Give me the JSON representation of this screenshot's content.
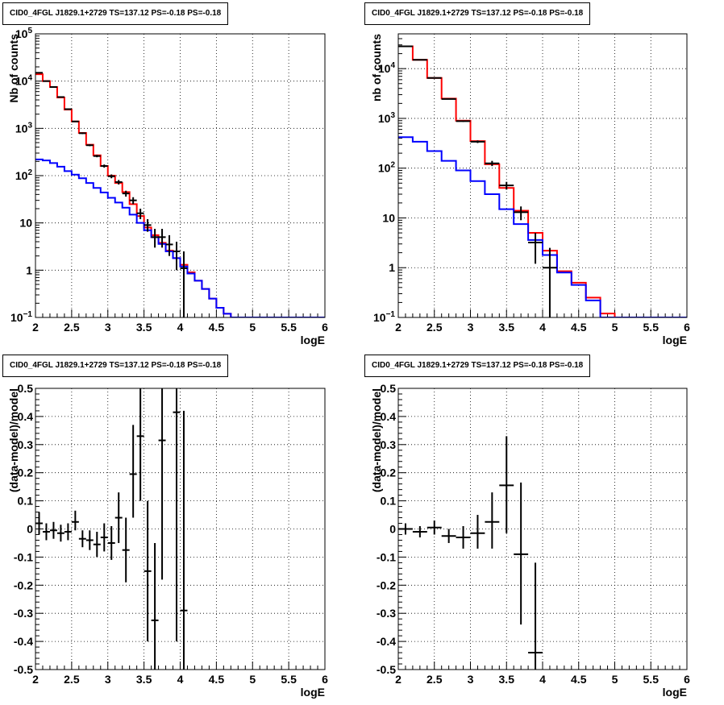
{
  "chart_data": [
    {
      "type": "line",
      "title": "CID0_4FGL J1829.1+2729 TS=137.12 PS=-0.18 PS=-0.18",
      "xlabel": "logE",
      "ylabel": "Nb of counts",
      "scale_y": "log",
      "xlim": [
        2,
        6
      ],
      "ylim": [
        0.1,
        100000
      ],
      "grid": true,
      "xticks": [
        "2",
        "2.5",
        "3",
        "3.5",
        "4",
        "4.5",
        "5",
        "5.5",
        "6"
      ],
      "yticks": [
        {
          "v": 0.1,
          "label": "10",
          "sup": "−1"
        },
        {
          "v": 1,
          "label": "1",
          "sup": ""
        },
        {
          "v": 10,
          "label": "10",
          "sup": ""
        },
        {
          "v": 100,
          "label": "10",
          "sup": "2"
        },
        {
          "v": 1000,
          "label": "10",
          "sup": "3"
        },
        {
          "v": 10000,
          "label": "10",
          "sup": "4"
        },
        {
          "v": 100000,
          "label": "10",
          "sup": "5"
        }
      ],
      "bin_edges": [
        2.0,
        2.1,
        2.2,
        2.3,
        2.4,
        2.5,
        2.6,
        2.7,
        2.8,
        2.9,
        3.0,
        3.1,
        3.2,
        3.3,
        3.4,
        3.5,
        3.6,
        3.7,
        3.8,
        3.9,
        4.0,
        4.1,
        4.2,
        4.3,
        4.4,
        4.5,
        4.6,
        4.7,
        4.8,
        4.9,
        5.0,
        5.1,
        5.2,
        5.3,
        5.4,
        5.5,
        5.6,
        5.7,
        5.8,
        5.9,
        6.0
      ],
      "series": [
        {
          "color": "#ff0000",
          "style": "step",
          "values": [
            14000,
            10000,
            7500,
            4500,
            2500,
            1400,
            800,
            450,
            270,
            160,
            100,
            70,
            45,
            25,
            14,
            8,
            5.5,
            3.8,
            2.6,
            1.8,
            1.3,
            0.9,
            0.6,
            0.4,
            0.25,
            0.16,
            0.12,
            0.1,
            0.1,
            0.1,
            0.1,
            0.1,
            0.1,
            0.1,
            0.1,
            0.1,
            0.1,
            0.1,
            0.1,
            0.1
          ]
        },
        {
          "color": "#0000ff",
          "style": "step",
          "values": [
            220,
            210,
            185,
            155,
            125,
            105,
            88,
            70,
            55,
            44,
            34,
            27,
            21,
            15,
            10,
            7,
            5,
            3.6,
            2.5,
            1.8,
            1.2,
            0.85,
            0.6,
            0.4,
            0.25,
            0.16,
            0.12,
            0.1,
            0.1,
            0.1,
            0.1,
            0.1,
            0.1,
            0.1,
            0.1,
            0.1,
            0.1,
            0.1,
            0.1,
            0.1
          ]
        },
        {
          "color": "#000000",
          "style": "errorbar",
          "points": [
            {
              "x": 2.05,
              "y": 15000,
              "lo": 14800,
              "hi": 15200
            },
            {
              "x": 2.15,
              "y": 10000,
              "lo": 9900,
              "hi": 10100
            },
            {
              "x": 2.25,
              "y": 7500,
              "lo": 7400,
              "hi": 7600
            },
            {
              "x": 2.35,
              "y": 4600,
              "lo": 4500,
              "hi": 4700
            },
            {
              "x": 2.45,
              "y": 2550,
              "lo": 2500,
              "hi": 2600
            },
            {
              "x": 2.55,
              "y": 1400,
              "lo": 1360,
              "hi": 1440
            },
            {
              "x": 2.65,
              "y": 790,
              "lo": 760,
              "hi": 820
            },
            {
              "x": 2.75,
              "y": 440,
              "lo": 420,
              "hi": 460
            },
            {
              "x": 2.85,
              "y": 260,
              "lo": 245,
              "hi": 275
            },
            {
              "x": 2.95,
              "y": 160,
              "lo": 148,
              "hi": 172
            },
            {
              "x": 3.05,
              "y": 97,
              "lo": 88,
              "hi": 106
            },
            {
              "x": 3.15,
              "y": 73,
              "lo": 65,
              "hi": 81
            },
            {
              "x": 3.25,
              "y": 42,
              "lo": 36,
              "hi": 48
            },
            {
              "x": 3.35,
              "y": 30,
              "lo": 25,
              "hi": 35
            },
            {
              "x": 3.45,
              "y": 16,
              "lo": 12,
              "hi": 20
            },
            {
              "x": 3.55,
              "y": 9,
              "lo": 6.5,
              "hi": 12
            },
            {
              "x": 3.65,
              "y": 5,
              "lo": 3,
              "hi": 7.5
            },
            {
              "x": 3.75,
              "y": 5,
              "lo": 3,
              "hi": 7.5
            },
            {
              "x": 3.85,
              "y": 3.5,
              "lo": 2,
              "hi": 5.5
            },
            {
              "x": 3.95,
              "y": 2.5,
              "lo": 1,
              "hi": 4
            },
            {
              "x": 4.05,
              "y": 1.1,
              "lo": 0.1,
              "hi": 2.5
            }
          ]
        }
      ]
    },
    {
      "type": "line",
      "title": "CID0_4FGL J1829.1+2729 TS=137.12 PS=-0.18 PS=-0.18",
      "xlabel": "logE",
      "ylabel": "nb of counts",
      "scale_y": "log",
      "xlim": [
        2,
        6
      ],
      "ylim": [
        0.1,
        50000
      ],
      "grid": true,
      "xticks": [
        "2",
        "2.5",
        "3",
        "3.5",
        "4",
        "4.5",
        "5",
        "5.5",
        "6"
      ],
      "yticks": [
        {
          "v": 0.1,
          "label": "10",
          "sup": "−1"
        },
        {
          "v": 1,
          "label": "1",
          "sup": ""
        },
        {
          "v": 10,
          "label": "10",
          "sup": ""
        },
        {
          "v": 100,
          "label": "10",
          "sup": "2"
        },
        {
          "v": 1000,
          "label": "10",
          "sup": "3"
        },
        {
          "v": 10000,
          "label": "10",
          "sup": "4"
        }
      ],
      "bin_edges": [
        2.0,
        2.2,
        2.4,
        2.6,
        2.8,
        3.0,
        3.2,
        3.4,
        3.6,
        3.8,
        4.0,
        4.2,
        4.4,
        4.6,
        4.8,
        5.0,
        5.2,
        5.4,
        5.6,
        5.8,
        6.0
      ],
      "series": [
        {
          "color": "#ff0000",
          "style": "step",
          "values": [
            28000,
            15000,
            6500,
            2500,
            900,
            350,
            120,
            40,
            14,
            5,
            2.2,
            0.85,
            0.5,
            0.25,
            0.12,
            0.1,
            0.1,
            0.1,
            0.1,
            0.1
          ]
        },
        {
          "color": "#0000ff",
          "style": "step",
          "values": [
            420,
            340,
            220,
            140,
            90,
            55,
            30,
            15,
            7.5,
            3.6,
            1.8,
            0.8,
            0.45,
            0.22,
            0.1,
            0.1,
            0.1,
            0.1,
            0.1,
            0.1
          ]
        },
        {
          "color": "#000000",
          "style": "errorbar",
          "points": [
            {
              "x": 2.1,
              "y": 28000,
              "lo": 27800,
              "hi": 28200
            },
            {
              "x": 2.3,
              "y": 15000,
              "lo": 14900,
              "hi": 15100
            },
            {
              "x": 2.5,
              "y": 6500,
              "lo": 6400,
              "hi": 6600
            },
            {
              "x": 2.7,
              "y": 2450,
              "lo": 2400,
              "hi": 2500
            },
            {
              "x": 2.9,
              "y": 880,
              "lo": 850,
              "hi": 910
            },
            {
              "x": 3.1,
              "y": 340,
              "lo": 320,
              "hi": 360
            },
            {
              "x": 3.3,
              "y": 125,
              "lo": 110,
              "hi": 140
            },
            {
              "x": 3.5,
              "y": 45,
              "lo": 37,
              "hi": 53
            },
            {
              "x": 3.7,
              "y": 13,
              "lo": 9,
              "hi": 17
            },
            {
              "x": 3.9,
              "y": 3.2,
              "lo": 1.2,
              "hi": 5
            },
            {
              "x": 4.1,
              "y": 1,
              "lo": 0.1,
              "hi": 2.5
            }
          ]
        }
      ]
    },
    {
      "type": "scatter",
      "title": "CID0_4FGL J1829.1+2729 TS=137.12 PS=-0.18 PS=-0.18",
      "xlabel": "logE",
      "ylabel": "(data-model)/model",
      "xlim": [
        2,
        6
      ],
      "ylim": [
        -0.5,
        0.5
      ],
      "grid": true,
      "xticks": [
        "2",
        "2.5",
        "3",
        "3.5",
        "4",
        "4.5",
        "5",
        "5.5",
        "6"
      ],
      "yticks": [
        "-0.5",
        "-0.4",
        "-0.3",
        "-0.2",
        "-0.1",
        "0",
        "0.1",
        "0.2",
        "0.3",
        "0.4",
        "0.5"
      ],
      "bin_halfwidth": 0.05,
      "points": [
        {
          "x": 2.05,
          "y": 0.02,
          "lo": -0.02,
          "hi": 0.06
        },
        {
          "x": 2.15,
          "y": -0.01,
          "lo": -0.04,
          "hi": 0.02
        },
        {
          "x": 2.25,
          "y": -0.005,
          "lo": -0.035,
          "hi": 0.025
        },
        {
          "x": 2.35,
          "y": -0.015,
          "lo": -0.045,
          "hi": 0.015
        },
        {
          "x": 2.45,
          "y": -0.01,
          "lo": -0.04,
          "hi": 0.02
        },
        {
          "x": 2.55,
          "y": 0.025,
          "lo": -0.005,
          "hi": 0.065
        },
        {
          "x": 2.65,
          "y": -0.035,
          "lo": -0.065,
          "hi": -0.005
        },
        {
          "x": 2.75,
          "y": -0.04,
          "lo": -0.075,
          "hi": -0.005
        },
        {
          "x": 2.85,
          "y": -0.055,
          "lo": -0.1,
          "hi": -0.01
        },
        {
          "x": 2.95,
          "y": -0.03,
          "lo": -0.08,
          "hi": 0.02
        },
        {
          "x": 3.05,
          "y": -0.05,
          "lo": -0.11,
          "hi": 0.01
        },
        {
          "x": 3.15,
          "y": 0.04,
          "lo": -0.05,
          "hi": 0.13
        },
        {
          "x": 3.25,
          "y": -0.075,
          "lo": -0.19,
          "hi": 0.04
        },
        {
          "x": 3.35,
          "y": 0.195,
          "lo": 0.04,
          "hi": 0.37
        },
        {
          "x": 3.45,
          "y": 0.33,
          "lo": 0.1,
          "hi": 0.5
        },
        {
          "x": 3.55,
          "y": -0.15,
          "lo": -0.4,
          "hi": 0.1
        },
        {
          "x": 3.65,
          "y": -0.325,
          "lo": -0.5,
          "hi": -0.05
        },
        {
          "x": 3.75,
          "y": 0.315,
          "lo": -0.18,
          "hi": 0.5
        },
        {
          "x": 3.95,
          "y": 0.415,
          "lo": -0.4,
          "hi": 0.5
        },
        {
          "x": 4.05,
          "y": -0.29,
          "lo": -0.5,
          "hi": 0.42
        }
      ]
    },
    {
      "type": "scatter",
      "title": "CID0_4FGL J1829.1+2729 TS=137.12 PS=-0.18 PS=-0.18",
      "xlabel": "logE",
      "ylabel": "(data-model)/model",
      "xlim": [
        2,
        6
      ],
      "ylim": [
        -0.5,
        0.5
      ],
      "grid": true,
      "xticks": [
        "2",
        "2.5",
        "3",
        "3.5",
        "4",
        "4.5",
        "5",
        "5.5",
        "6"
      ],
      "yticks": [
        "-0.5",
        "-0.4",
        "-0.3",
        "-0.2",
        "-0.1",
        "0",
        "0.1",
        "0.2",
        "0.3",
        "0.4",
        "0.5"
      ],
      "bin_halfwidth": 0.1,
      "points": [
        {
          "x": 2.1,
          "y": 0.0,
          "lo": -0.02,
          "hi": 0.02
        },
        {
          "x": 2.3,
          "y": -0.01,
          "lo": -0.03,
          "hi": 0.01
        },
        {
          "x": 2.5,
          "y": 0.005,
          "lo": -0.02,
          "hi": 0.03
        },
        {
          "x": 2.7,
          "y": -0.025,
          "lo": -0.05,
          "hi": 0.0
        },
        {
          "x": 2.9,
          "y": -0.03,
          "lo": -0.07,
          "hi": 0.01
        },
        {
          "x": 3.1,
          "y": -0.015,
          "lo": -0.07,
          "hi": 0.05
        },
        {
          "x": 3.3,
          "y": 0.025,
          "lo": -0.07,
          "hi": 0.13
        },
        {
          "x": 3.5,
          "y": 0.155,
          "lo": -0.015,
          "hi": 0.33
        },
        {
          "x": 3.7,
          "y": -0.09,
          "lo": -0.34,
          "hi": 0.165
        },
        {
          "x": 3.9,
          "y": -0.44,
          "lo": -0.5,
          "hi": -0.12
        }
      ]
    }
  ]
}
